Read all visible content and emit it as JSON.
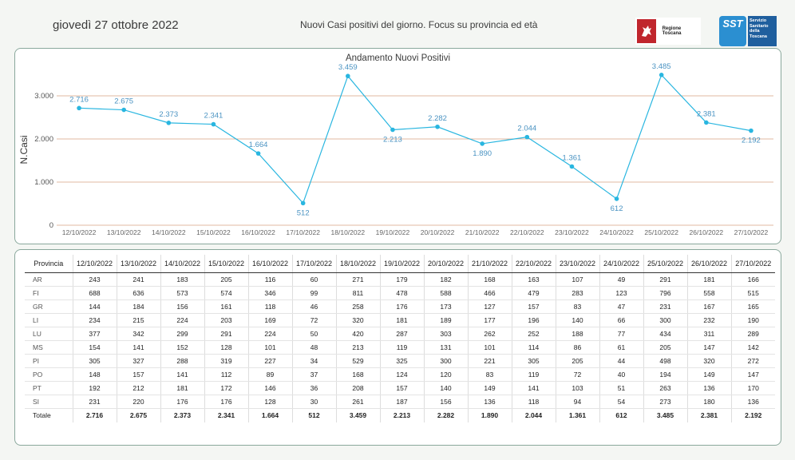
{
  "header": {
    "date": "giovedì 27 ottobre 2022",
    "subtitle": "Nuovi Casi positivi del giorno. Focus su provincia ed età",
    "logo_regione": "Regione Toscana",
    "logo_sst_mark": "SST",
    "logo_sst_text": "Servizio Sanitario della Toscana"
  },
  "colors": {
    "line": "#29b6e0",
    "point": "#29b6e0",
    "grid": "#e0b8a0",
    "label": "#4a93c2",
    "panel_border": "#8aa89c"
  },
  "chart_data": {
    "type": "line",
    "title": "Andamento Nuovi Positivi",
    "ylabel": "N.Casi",
    "xlabel": "",
    "ylim": [
      0,
      3500
    ],
    "yticks": [
      0,
      1000,
      2000,
      3000
    ],
    "ytick_labels": [
      "0",
      "1.000",
      "2.000",
      "3.000"
    ],
    "grid": "horizontal",
    "categories": [
      "12/10/2022",
      "13/10/2022",
      "14/10/2022",
      "15/10/2022",
      "16/10/2022",
      "17/10/2022",
      "18/10/2022",
      "19/10/2022",
      "20/10/2022",
      "21/10/2022",
      "22/10/2022",
      "23/10/2022",
      "24/10/2022",
      "25/10/2022",
      "26/10/2022",
      "27/10/2022"
    ],
    "values": [
      2716,
      2675,
      2373,
      2341,
      1664,
      512,
      3459,
      2213,
      2282,
      1890,
      2044,
      1361,
      612,
      3485,
      2381,
      2192
    ],
    "value_labels": [
      "2.716",
      "2.675",
      "2.373",
      "2.341",
      "1.664",
      "512",
      "3.459",
      "2.213",
      "2.282",
      "1.890",
      "2.044",
      "1.361",
      "612",
      "3.485",
      "2.381",
      "2.192"
    ],
    "label_position": [
      "above",
      "above",
      "above",
      "above",
      "above",
      "below",
      "above",
      "below",
      "above",
      "below",
      "above",
      "above",
      "below",
      "above",
      "above",
      "below"
    ]
  },
  "table": {
    "header_label": "Provincia",
    "dates": [
      "12/10/2022",
      "13/10/2022",
      "14/10/2022",
      "15/10/2022",
      "16/10/2022",
      "17/10/2022",
      "18/10/2022",
      "19/10/2022",
      "20/10/2022",
      "21/10/2022",
      "22/10/2022",
      "23/10/2022",
      "24/10/2022",
      "25/10/2022",
      "26/10/2022",
      "27/10/2022"
    ],
    "rows": [
      {
        "name": "AR",
        "values": [
          "243",
          "241",
          "183",
          "205",
          "116",
          "60",
          "271",
          "179",
          "182",
          "168",
          "163",
          "107",
          "49",
          "291",
          "181",
          "166"
        ]
      },
      {
        "name": "FI",
        "values": [
          "688",
          "636",
          "573",
          "574",
          "346",
          "99",
          "811",
          "478",
          "588",
          "466",
          "479",
          "283",
          "123",
          "796",
          "558",
          "515"
        ]
      },
      {
        "name": "GR",
        "values": [
          "144",
          "184",
          "156",
          "161",
          "118",
          "46",
          "258",
          "176",
          "173",
          "127",
          "157",
          "83",
          "47",
          "231",
          "167",
          "165"
        ]
      },
      {
        "name": "LI",
        "values": [
          "234",
          "215",
          "224",
          "203",
          "169",
          "72",
          "320",
          "181",
          "189",
          "177",
          "196",
          "140",
          "66",
          "300",
          "232",
          "190"
        ]
      },
      {
        "name": "LU",
        "values": [
          "377",
          "342",
          "299",
          "291",
          "224",
          "50",
          "420",
          "287",
          "303",
          "262",
          "252",
          "188",
          "77",
          "434",
          "311",
          "289"
        ]
      },
      {
        "name": "MS",
        "values": [
          "154",
          "141",
          "152",
          "128",
          "101",
          "48",
          "213",
          "119",
          "131",
          "101",
          "114",
          "86",
          "61",
          "205",
          "147",
          "142"
        ]
      },
      {
        "name": "PI",
        "values": [
          "305",
          "327",
          "288",
          "319",
          "227",
          "34",
          "529",
          "325",
          "300",
          "221",
          "305",
          "205",
          "44",
          "498",
          "320",
          "272"
        ]
      },
      {
        "name": "PO",
        "values": [
          "148",
          "157",
          "141",
          "112",
          "89",
          "37",
          "168",
          "124",
          "120",
          "83",
          "119",
          "72",
          "40",
          "194",
          "149",
          "147"
        ]
      },
      {
        "name": "PT",
        "values": [
          "192",
          "212",
          "181",
          "172",
          "146",
          "36",
          "208",
          "157",
          "140",
          "149",
          "141",
          "103",
          "51",
          "263",
          "136",
          "170"
        ]
      },
      {
        "name": "SI",
        "values": [
          "231",
          "220",
          "176",
          "176",
          "128",
          "30",
          "261",
          "187",
          "156",
          "136",
          "118",
          "94",
          "54",
          "273",
          "180",
          "136"
        ]
      }
    ],
    "total": {
      "name": "Totale",
      "values": [
        "2.716",
        "2.675",
        "2.373",
        "2.341",
        "1.664",
        "512",
        "3.459",
        "2.213",
        "2.282",
        "1.890",
        "2.044",
        "1.361",
        "612",
        "3.485",
        "2.381",
        "2.192"
      ]
    }
  }
}
